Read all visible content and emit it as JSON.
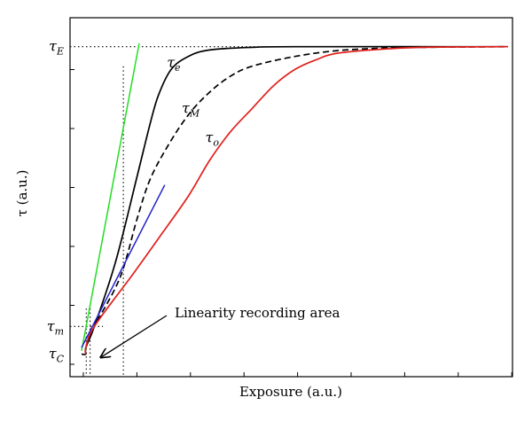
{
  "chart_data": {
    "type": "line",
    "title": "",
    "xlabel": "Exposure (a.u.)",
    "ylabel": "τ (a.u.)",
    "xlim": [
      0,
      10
    ],
    "ylim": [
      0,
      10
    ],
    "grid": false,
    "legend": "none",
    "y_markers": [
      {
        "id": "tauE",
        "label": "τE",
        "base": "τ",
        "sub": "E",
        "value": 9.6
      },
      {
        "id": "taum",
        "label": "τm",
        "base": "τ",
        "sub": "m",
        "value": 1.0
      },
      {
        "id": "tauC",
        "label": "τC",
        "base": "τ",
        "sub": "C",
        "value": 0.15
      }
    ],
    "series": [
      {
        "name": "τe",
        "base": "τ",
        "sub": "e",
        "color": "#000000",
        "dash": "solid",
        "points": [
          [
            0.0,
            0.15
          ],
          [
            0.1,
            0.15
          ],
          [
            0.1,
            0.35
          ],
          [
            0.3,
            1.0
          ],
          [
            0.8,
            3.0
          ],
          [
            1.3,
            5.6
          ],
          [
            1.6,
            7.2
          ],
          [
            1.8,
            8.1
          ],
          [
            2.1,
            8.9
          ],
          [
            2.5,
            9.3
          ],
          [
            3.0,
            9.5
          ],
          [
            4.0,
            9.58
          ],
          [
            5.0,
            9.6
          ],
          [
            10.0,
            9.6
          ]
        ]
      },
      {
        "name": "τM",
        "base": "τ",
        "sub": "M",
        "color": "#000000",
        "dash": "dashed",
        "points": [
          [
            0.1,
            0.35
          ],
          [
            0.3,
            1.0
          ],
          [
            0.9,
            2.5
          ],
          [
            1.3,
            4.3
          ],
          [
            1.6,
            5.5
          ],
          [
            2.0,
            6.5
          ],
          [
            2.5,
            7.5
          ],
          [
            3.0,
            8.2
          ],
          [
            3.5,
            8.7
          ],
          [
            4.0,
            9.0
          ],
          [
            5.0,
            9.3
          ],
          [
            6.0,
            9.48
          ],
          [
            7.0,
            9.55
          ],
          [
            8.0,
            9.58
          ],
          [
            10.0,
            9.6
          ]
        ]
      },
      {
        "name": "τo",
        "base": "τ",
        "sub": "o",
        "color": "#e0201b",
        "dash": "solid",
        "points": [
          [
            0.1,
            0.15
          ],
          [
            0.1,
            0.35
          ],
          [
            0.3,
            1.0
          ],
          [
            1.2,
            2.6
          ],
          [
            1.8,
            3.7
          ],
          [
            2.5,
            5.0
          ],
          [
            3.0,
            6.1
          ],
          [
            3.5,
            7.0
          ],
          [
            4.0,
            7.7
          ],
          [
            4.5,
            8.4
          ],
          [
            5.0,
            8.9
          ],
          [
            5.5,
            9.2
          ],
          [
            6.0,
            9.4
          ],
          [
            7.0,
            9.52
          ],
          [
            8.0,
            9.58
          ],
          [
            10.0,
            9.6
          ]
        ]
      }
    ],
    "tangents": [
      {
        "id": "green-tangent",
        "color": "#22dd22",
        "points": [
          [
            0.0,
            0.25
          ],
          [
            1.35,
            9.7
          ]
        ]
      },
      {
        "id": "blue-tangent",
        "color": "#2222cc",
        "points": [
          [
            0.0,
            0.35
          ],
          [
            1.95,
            5.35
          ]
        ]
      }
    ],
    "guides": {
      "vertical": [
        0.11,
        0.2,
        0.98
      ],
      "taum_hline_x": [
        0.0,
        0.5
      ],
      "tauE_hline_x": [
        0.0,
        10.0
      ]
    },
    "annotation": {
      "text": "Linearity recording area",
      "target": [
        0.45,
        0.05
      ]
    },
    "label_anchors": [
      {
        "series": "τe",
        "at": [
          2.0,
          9.1
        ]
      },
      {
        "series": "τM",
        "at": [
          2.35,
          7.7
        ]
      },
      {
        "series": "τo",
        "at": [
          2.9,
          6.8
        ]
      }
    ]
  }
}
